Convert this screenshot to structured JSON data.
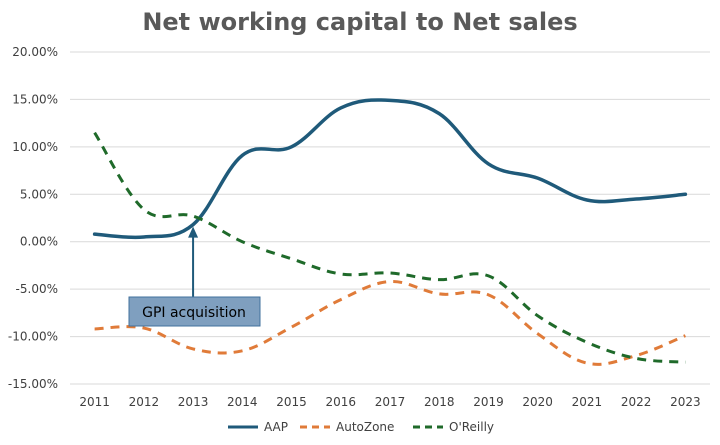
{
  "chart_data": {
    "type": "line",
    "title": "Net working capital to Net sales",
    "xlabel": "",
    "ylabel": "",
    "x": [
      "2011",
      "2012",
      "2013",
      "2014",
      "2015",
      "2016",
      "2017",
      "2018",
      "2019",
      "2020",
      "2021",
      "2022",
      "2023"
    ],
    "ylim": [
      -15,
      20
    ],
    "y_ticks": [
      "20.00%",
      "15.00%",
      "10.00%",
      "5.00%",
      "0.00%",
      "-5.00%",
      "-10.00%",
      "-15.00%"
    ],
    "y_tick_values": [
      20,
      15,
      10,
      5,
      0,
      -5,
      -10,
      -15
    ],
    "grid": true,
    "legend_position": "bottom",
    "series": [
      {
        "name": "AAP",
        "style": "solid",
        "color": "#1f5a7a",
        "values": [
          0.8,
          0.5,
          1.8,
          9.1,
          10.0,
          14.1,
          14.9,
          13.5,
          8.2,
          6.7,
          4.4,
          4.5,
          5.0
        ]
      },
      {
        "name": "AutoZone",
        "style": "dashed",
        "color": "#e07b39",
        "values": [
          -9.2,
          -9.1,
          -11.3,
          -11.5,
          -9.0,
          -6.1,
          -4.2,
          -5.5,
          -5.6,
          -9.7,
          -12.8,
          -12.0,
          -9.9
        ]
      },
      {
        "name": "O'Reilly",
        "style": "dashed",
        "color": "#1f6a2a",
        "values": [
          11.5,
          3.4,
          2.7,
          0.0,
          -1.8,
          -3.4,
          -3.3,
          -4.0,
          -3.6,
          -7.8,
          -10.6,
          -12.3,
          -12.7
        ]
      }
    ],
    "annotations": [
      {
        "text": "GPI acquisition",
        "x": "2013",
        "y": 1.8,
        "bg_color": "#7f9fbf"
      }
    ]
  }
}
